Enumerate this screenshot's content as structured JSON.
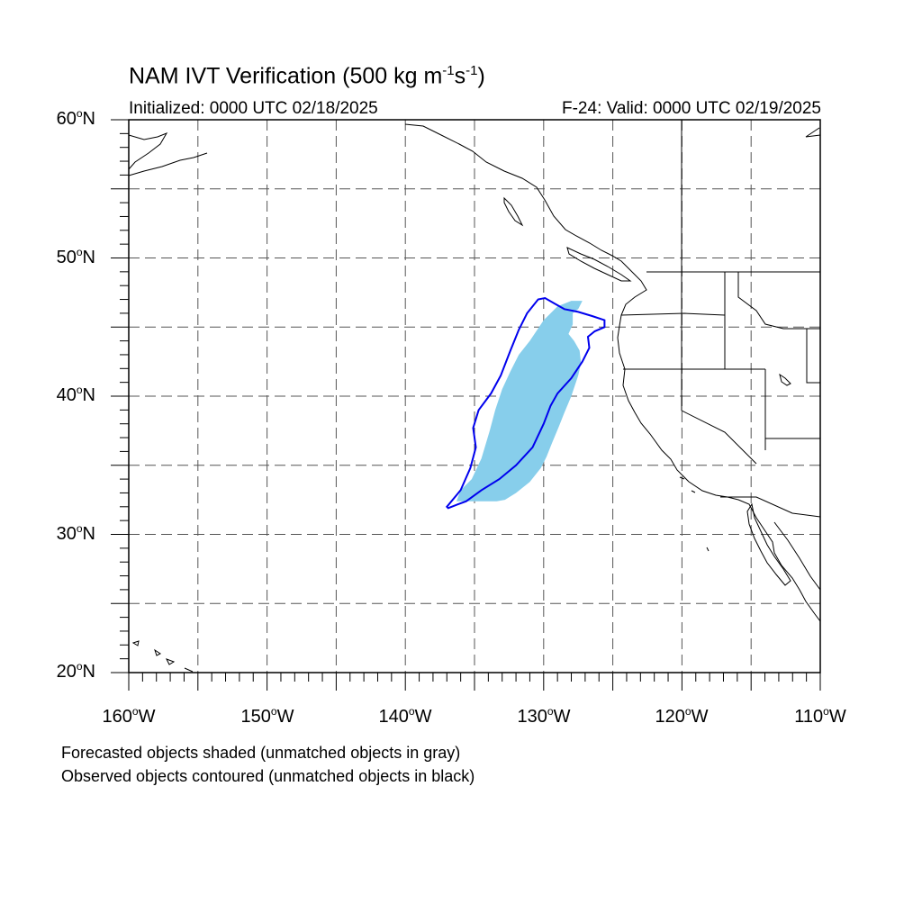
{
  "title": {
    "main": "NAM IVT Verification (500 kg m",
    "exp1": "-1",
    "mid": "s",
    "exp2": "-1",
    "end": ")"
  },
  "subtitle_left": "Initialized: 0000 UTC 02/18/2025",
  "subtitle_right": "F-24: Valid: 0000 UTC 02/19/2025",
  "map": {
    "lon_range": [
      -160,
      -110
    ],
    "lat_range": [
      20,
      60
    ],
    "lat_labels": [
      {
        "value": 60,
        "num": "60",
        "suffix": "N"
      },
      {
        "value": 50,
        "num": "50",
        "suffix": "N"
      },
      {
        "value": 40,
        "num": "40",
        "suffix": "N"
      },
      {
        "value": 30,
        "num": "30",
        "suffix": "N"
      },
      {
        "value": 20,
        "num": "20",
        "suffix": "N"
      }
    ],
    "lon_labels": [
      {
        "value": -160,
        "num": "160",
        "suffix": "W"
      },
      {
        "value": -150,
        "num": "150",
        "suffix": "W"
      },
      {
        "value": -140,
        "num": "140",
        "suffix": "W"
      },
      {
        "value": -130,
        "num": "130",
        "suffix": "W"
      },
      {
        "value": -120,
        "num": "120",
        "suffix": "W"
      },
      {
        "value": -110,
        "num": "110",
        "suffix": "W"
      }
    ],
    "grid_spacing_deg": 5,
    "forecast_object_color": "#87ceeb",
    "observed_contour_color": "#0000ee",
    "forecast_object": [
      [
        -133.4,
        32.4
      ],
      [
        -132.8,
        32.5
      ],
      [
        -132.0,
        33.0
      ],
      [
        -131.0,
        33.8
      ],
      [
        -130.2,
        34.8
      ],
      [
        -129.8,
        35.6
      ],
      [
        -129.4,
        36.6
      ],
      [
        -128.9,
        37.8
      ],
      [
        -128.5,
        38.8
      ],
      [
        -128.0,
        40.0
      ],
      [
        -127.5,
        41.5
      ],
      [
        -127.3,
        42.4
      ],
      [
        -127.4,
        43.3
      ],
      [
        -127.8,
        44.0
      ],
      [
        -128.2,
        44.5
      ],
      [
        -127.9,
        45.2
      ],
      [
        -127.9,
        46.0
      ],
      [
        -127.5,
        46.3
      ],
      [
        -127.2,
        46.9
      ],
      [
        -128.0,
        46.9
      ],
      [
        -129.0,
        46.5
      ],
      [
        -130.0,
        45.5
      ],
      [
        -131.0,
        44.0
      ],
      [
        -131.8,
        43.0
      ],
      [
        -132.4,
        41.8
      ],
      [
        -133.0,
        40.5
      ],
      [
        -133.5,
        39.0
      ],
      [
        -133.9,
        37.5
      ],
      [
        -134.5,
        35.5
      ],
      [
        -135.2,
        34.0
      ],
      [
        -136.0,
        33.2
      ],
      [
        -136.3,
        32.4
      ]
    ],
    "observed_contour": [
      [
        -136.9,
        31.9
      ],
      [
        -136.4,
        32.1
      ],
      [
        -135.6,
        32.4
      ],
      [
        -134.5,
        33.2
      ],
      [
        -133.2,
        34.0
      ],
      [
        -132.0,
        35.0
      ],
      [
        -130.8,
        36.3
      ],
      [
        -130.0,
        38.0
      ],
      [
        -129.5,
        39.3
      ],
      [
        -129.0,
        40.2
      ],
      [
        -128.0,
        41.3
      ],
      [
        -127.2,
        42.5
      ],
      [
        -126.7,
        43.5
      ],
      [
        -126.8,
        44.3
      ],
      [
        -126.3,
        44.7
      ],
      [
        -125.6,
        45.0
      ],
      [
        -125.6,
        45.5
      ],
      [
        -126.5,
        45.8
      ],
      [
        -127.5,
        46.1
      ],
      [
        -128.5,
        46.3
      ],
      [
        -129.2,
        46.7
      ],
      [
        -129.9,
        47.1
      ],
      [
        -130.4,
        47.0
      ],
      [
        -131.2,
        46.0
      ],
      [
        -131.8,
        44.8
      ],
      [
        -132.4,
        43.3
      ],
      [
        -133.1,
        41.5
      ],
      [
        -133.8,
        40.2
      ],
      [
        -134.7,
        39.0
      ],
      [
        -135.1,
        37.7
      ],
      [
        -134.9,
        36.3
      ],
      [
        -135.3,
        34.8
      ],
      [
        -136.0,
        33.2
      ],
      [
        -137.0,
        32.0
      ]
    ]
  },
  "notes": [
    "Forecasted objects shaded (unmatched objects in gray)",
    "Observed objects contoured (unmatched objects in black)"
  ]
}
